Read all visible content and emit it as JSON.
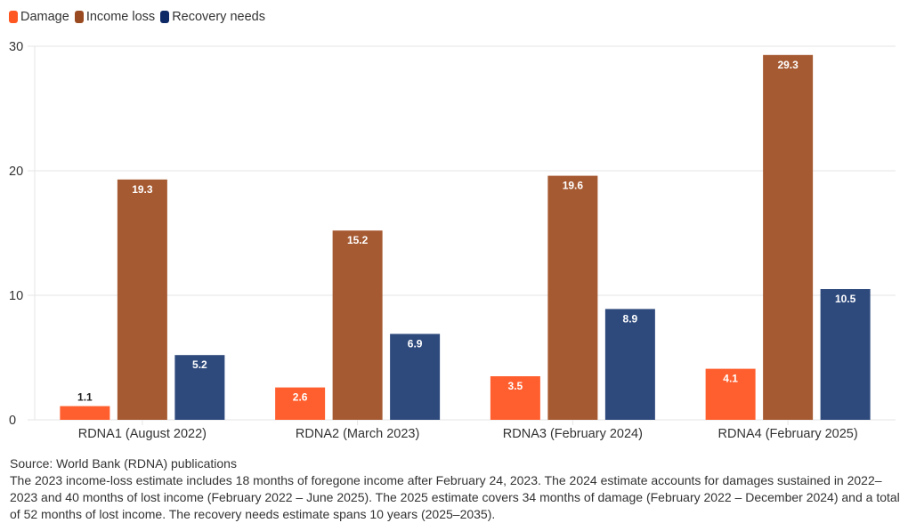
{
  "chart_data": {
    "type": "bar",
    "title": "",
    "xlabel": "",
    "ylabel": "",
    "ylim": [
      0,
      30
    ],
    "yticks": [
      0,
      10,
      20,
      30
    ],
    "grid": true,
    "legend_position": "top-left",
    "categories": [
      "RDNA1 (August 2022)",
      "RDNA2 (March 2023)",
      "RDNA3 (February 2024)",
      "RDNA4 (February 2025)"
    ],
    "series": [
      {
        "name": "Damage",
        "color": "#ff5f2e",
        "values": [
          1.1,
          2.6,
          3.5,
          4.1
        ]
      },
      {
        "name": "Income loss",
        "color": "#a65a32",
        "values": [
          19.3,
          15.2,
          19.6,
          29.3
        ]
      },
      {
        "name": "Recovery needs",
        "color": "#2e4a7d",
        "values": [
          5.2,
          6.9,
          8.9,
          10.5
        ]
      }
    ]
  },
  "legend": {
    "items": [
      {
        "label": "Damage",
        "color": "#ff5722"
      },
      {
        "label": "Income loss",
        "color": "#9a4a20"
      },
      {
        "label": "Recovery needs",
        "color": "#0e2a66"
      }
    ]
  },
  "footer": {
    "source": "Source: World Bank (RDNA) publications",
    "note": "The 2023 income-loss estimate includes 18 months of foregone income after February 24, 2023. The 2024 estimate accounts for damages sustained in 2022–2023 and 40 months of lost income (February 2022 – June 2025). The 2025 estimate covers 34 months of damage (February 2022 – December 2024) and a total of 52 months of lost income. The recovery needs estimate spans 10 years (2025–2035)."
  }
}
